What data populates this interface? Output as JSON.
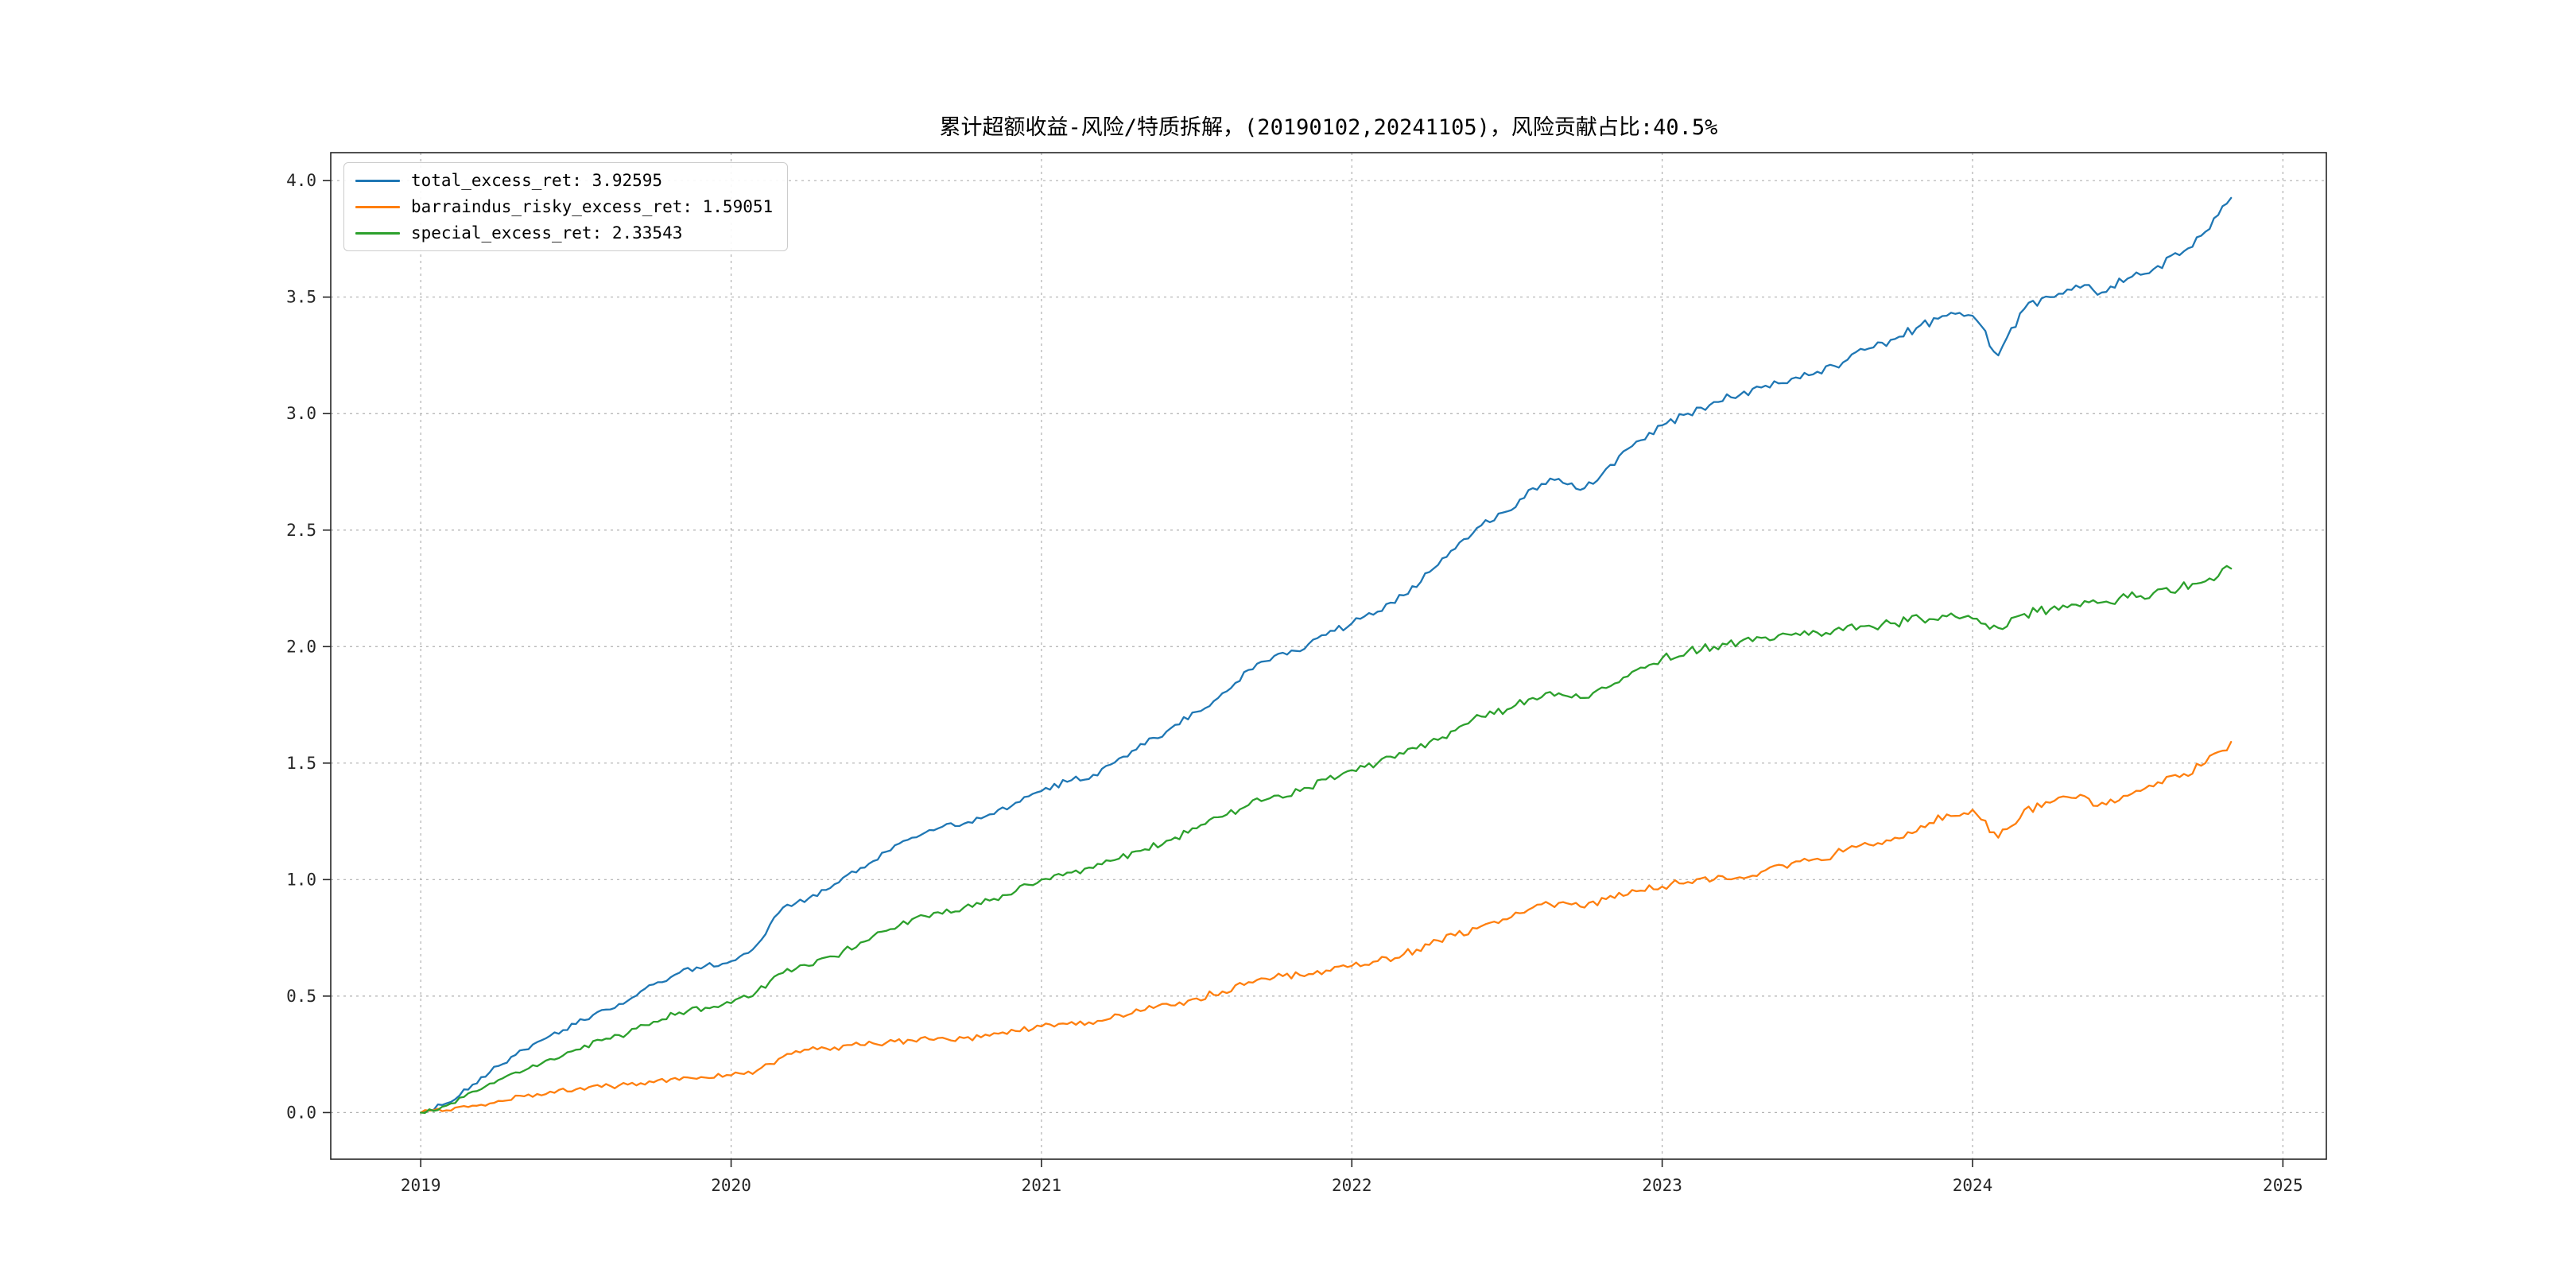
{
  "figure": {
    "title": "累计超额收益-风险/特质拆解，(20190102,20241105)，风险贡献占比:40.5%"
  },
  "legend": {
    "position": "upper left",
    "items": [
      {
        "label": "total_excess_ret: 3.92595",
        "color": "#1f77b4"
      },
      {
        "label": "barraindus_risky_excess_ret: 1.59051",
        "color": "#ff7f0e"
      },
      {
        "label": "special_excess_ret: 2.33543",
        "color": "#2ca02c"
      }
    ]
  },
  "chart_data": {
    "type": "line",
    "title": "累计超额收益-风险/特质拆解，(20190102,20241105)，风险贡献占比:40.5%",
    "xlabel": "",
    "ylabel": "",
    "date_range": [
      "20190102",
      "20241105"
    ],
    "risk_contribution_pct": 40.5,
    "grid": true,
    "grid_style": "dashed",
    "legend_position": "upper left",
    "xlim": [
      2018.71,
      2025.14
    ],
    "ylim": [
      -0.2,
      4.12
    ],
    "xticks": [
      2019,
      2020,
      2021,
      2022,
      2023,
      2024,
      2025
    ],
    "yticks": [
      0.0,
      0.5,
      1.0,
      1.5,
      2.0,
      2.5,
      3.0,
      3.5,
      4.0
    ],
    "x": [
      2019.0,
      2019.083,
      2019.167,
      2019.25,
      2019.333,
      2019.417,
      2019.5,
      2019.583,
      2019.667,
      2019.75,
      2019.833,
      2019.917,
      2020.0,
      2020.083,
      2020.167,
      2020.25,
      2020.333,
      2020.417,
      2020.5,
      2020.583,
      2020.667,
      2020.75,
      2020.833,
      2020.917,
      2021.0,
      2021.083,
      2021.167,
      2021.25,
      2021.333,
      2021.417,
      2021.5,
      2021.583,
      2021.667,
      2021.75,
      2021.833,
      2021.917,
      2022.0,
      2022.083,
      2022.167,
      2022.25,
      2022.333,
      2022.417,
      2022.5,
      2022.583,
      2022.667,
      2022.75,
      2022.833,
      2022.917,
      2023.0,
      2023.083,
      2023.167,
      2023.25,
      2023.333,
      2023.417,
      2023.5,
      2023.583,
      2023.667,
      2023.75,
      2023.833,
      2023.917,
      2024.0,
      2024.083,
      2024.167,
      2024.25,
      2024.333,
      2024.417,
      2024.5,
      2024.583,
      2024.667,
      2024.75,
      2024.833
    ],
    "series": [
      {
        "name": "total_excess_ret",
        "final_value": 3.92595,
        "color": "#1f77b4",
        "values": [
          0.0,
          0.04,
          0.12,
          0.2,
          0.27,
          0.33,
          0.38,
          0.44,
          0.48,
          0.55,
          0.6,
          0.63,
          0.65,
          0.72,
          0.88,
          0.92,
          0.98,
          1.05,
          1.12,
          1.18,
          1.22,
          1.24,
          1.28,
          1.33,
          1.38,
          1.42,
          1.45,
          1.52,
          1.58,
          1.65,
          1.72,
          1.8,
          1.9,
          1.96,
          1.98,
          2.05,
          2.1,
          2.15,
          2.22,
          2.32,
          2.42,
          2.52,
          2.58,
          2.68,
          2.72,
          2.68,
          2.78,
          2.88,
          2.95,
          3.0,
          3.05,
          3.08,
          3.12,
          3.15,
          3.18,
          3.22,
          3.28,
          3.32,
          3.38,
          3.42,
          3.42,
          3.25,
          3.45,
          3.5,
          3.55,
          3.52,
          3.58,
          3.62,
          3.68,
          3.78,
          3.926
        ]
      },
      {
        "name": "barraindus_risky_excess_ret",
        "final_value": 1.59051,
        "color": "#ff7f0e",
        "values": [
          0.0,
          0.01,
          0.03,
          0.05,
          0.07,
          0.09,
          0.1,
          0.11,
          0.12,
          0.13,
          0.14,
          0.15,
          0.16,
          0.18,
          0.24,
          0.27,
          0.28,
          0.29,
          0.3,
          0.31,
          0.32,
          0.32,
          0.33,
          0.35,
          0.37,
          0.38,
          0.38,
          0.42,
          0.44,
          0.46,
          0.49,
          0.52,
          0.56,
          0.58,
          0.59,
          0.61,
          0.63,
          0.65,
          0.68,
          0.72,
          0.76,
          0.8,
          0.83,
          0.88,
          0.9,
          0.88,
          0.93,
          0.95,
          0.97,
          0.99,
          1.0,
          1.01,
          1.04,
          1.07,
          1.09,
          1.12,
          1.15,
          1.18,
          1.23,
          1.28,
          1.3,
          1.18,
          1.3,
          1.33,
          1.35,
          1.33,
          1.36,
          1.4,
          1.44,
          1.5,
          1.591
        ]
      },
      {
        "name": "special_excess_ret",
        "final_value": 2.33543,
        "color": "#2ca02c",
        "values": [
          0.0,
          0.03,
          0.09,
          0.14,
          0.18,
          0.23,
          0.27,
          0.31,
          0.34,
          0.39,
          0.43,
          0.45,
          0.47,
          0.52,
          0.6,
          0.63,
          0.67,
          0.73,
          0.78,
          0.83,
          0.86,
          0.88,
          0.91,
          0.95,
          1.0,
          1.03,
          1.05,
          1.09,
          1.13,
          1.17,
          1.22,
          1.27,
          1.32,
          1.36,
          1.38,
          1.43,
          1.47,
          1.5,
          1.54,
          1.59,
          1.64,
          1.7,
          1.73,
          1.78,
          1.8,
          1.78,
          1.83,
          1.9,
          1.95,
          1.98,
          2.0,
          2.02,
          2.04,
          2.05,
          2.06,
          2.07,
          2.09,
          2.1,
          2.12,
          2.13,
          2.12,
          2.08,
          2.14,
          2.16,
          2.18,
          2.19,
          2.21,
          2.23,
          2.25,
          2.28,
          2.335
        ]
      }
    ]
  }
}
